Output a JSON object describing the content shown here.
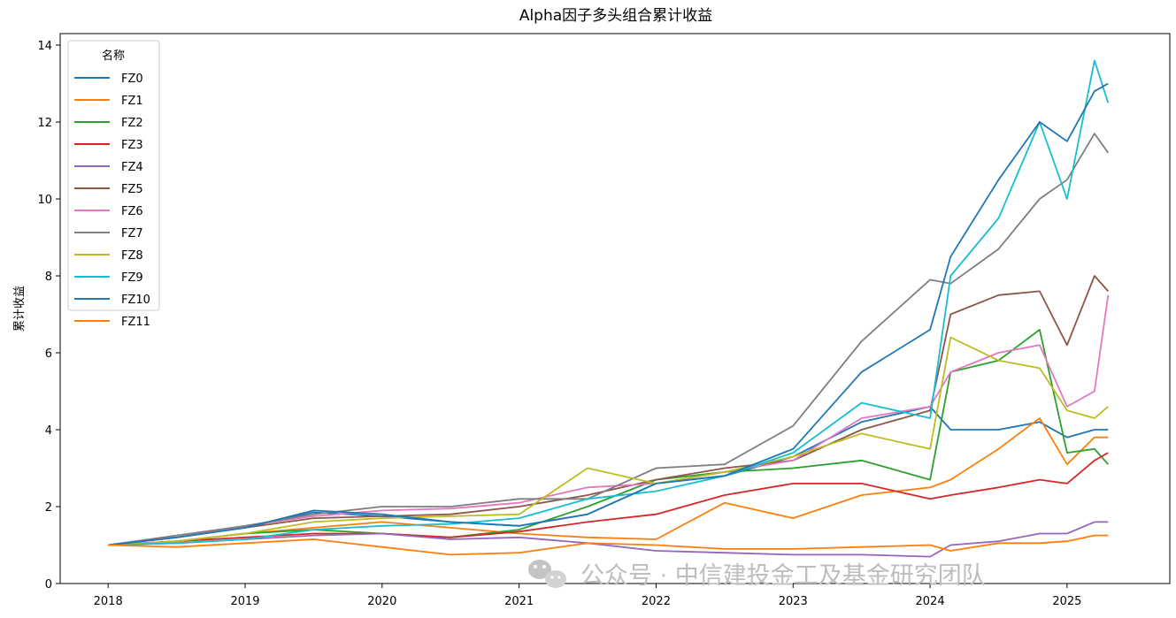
{
  "chart_data": {
    "type": "line",
    "title": "Alpha因子多头组合累计收益",
    "xlabel": "",
    "ylabel": "累计收益",
    "xlim": [
      2017.65,
      2025.75
    ],
    "ylim": [
      0,
      14.3
    ],
    "x_ticks": [
      "2018",
      "2019",
      "2020",
      "2021",
      "2022",
      "2023",
      "2024",
      "2025"
    ],
    "y_ticks": [
      "0",
      "2",
      "4",
      "6",
      "8",
      "10",
      "12",
      "14"
    ],
    "grid": false,
    "legend": {
      "title": "名称",
      "placement": "top-left"
    },
    "x": [
      2018.0,
      2018.5,
      2019.0,
      2019.5,
      2020.0,
      2020.5,
      2021.0,
      2021.5,
      2022.0,
      2022.5,
      2023.0,
      2023.5,
      2024.0,
      2024.15,
      2024.5,
      2024.8,
      2025.0,
      2025.2,
      2025.3
    ],
    "series": [
      {
        "name": "FZ0",
        "color": "#1f77b4",
        "values": [
          1.0,
          1.2,
          1.45,
          1.85,
          1.75,
          1.6,
          1.5,
          1.8,
          2.6,
          2.8,
          3.3,
          4.2,
          4.6,
          4.0,
          4.0,
          4.2,
          3.8,
          4.0,
          4.0
        ]
      },
      {
        "name": "FZ1",
        "color": "#ff7f0e",
        "values": [
          1.0,
          1.1,
          1.3,
          1.45,
          1.6,
          1.45,
          1.3,
          1.2,
          1.15,
          2.1,
          1.7,
          2.3,
          2.5,
          2.7,
          3.5,
          4.3,
          3.1,
          3.8,
          3.8
        ]
      },
      {
        "name": "FZ2",
        "color": "#2ca02c",
        "values": [
          1.0,
          1.1,
          1.3,
          1.4,
          1.3,
          1.2,
          1.4,
          2.0,
          2.7,
          2.9,
          3.0,
          3.2,
          2.7,
          5.5,
          5.8,
          6.6,
          3.4,
          3.5,
          3.1
        ]
      },
      {
        "name": "FZ3",
        "color": "#d62728",
        "values": [
          1.0,
          1.1,
          1.2,
          1.3,
          1.3,
          1.2,
          1.35,
          1.6,
          1.8,
          2.3,
          2.6,
          2.6,
          2.2,
          2.3,
          2.5,
          2.7,
          2.6,
          3.2,
          3.4
        ]
      },
      {
        "name": "FZ4",
        "color": "#9467bd",
        "values": [
          1.0,
          1.05,
          1.15,
          1.25,
          1.3,
          1.15,
          1.2,
          1.05,
          0.85,
          0.8,
          0.75,
          0.75,
          0.7,
          1.0,
          1.1,
          1.3,
          1.3,
          1.6,
          1.6
        ]
      },
      {
        "name": "FZ5",
        "color": "#8c564b",
        "values": [
          1.0,
          1.2,
          1.45,
          1.7,
          1.75,
          1.8,
          2.0,
          2.3,
          2.7,
          3.0,
          3.2,
          4.0,
          4.5,
          7.0,
          7.5,
          7.6,
          6.2,
          8.0,
          7.6
        ]
      },
      {
        "name": "FZ6",
        "color": "#e377c2",
        "values": [
          1.0,
          1.2,
          1.5,
          1.75,
          1.9,
          1.95,
          2.1,
          2.5,
          2.6,
          2.9,
          3.2,
          4.3,
          4.6,
          5.5,
          6.0,
          6.2,
          4.6,
          5.0,
          7.5
        ]
      },
      {
        "name": "FZ7",
        "color": "#7f7f7f",
        "values": [
          1.0,
          1.25,
          1.5,
          1.8,
          2.0,
          2.0,
          2.2,
          2.2,
          3.0,
          3.1,
          4.1,
          6.3,
          7.9,
          7.8,
          8.7,
          10.0,
          10.5,
          11.7,
          11.2
        ]
      },
      {
        "name": "FZ8",
        "color": "#bcbd22",
        "values": [
          1.0,
          1.1,
          1.3,
          1.6,
          1.7,
          1.75,
          1.8,
          3.0,
          2.6,
          2.9,
          3.3,
          3.9,
          3.5,
          6.4,
          5.8,
          5.6,
          4.5,
          4.3,
          4.6
        ]
      },
      {
        "name": "FZ9",
        "color": "#17becf",
        "values": [
          1.0,
          1.05,
          1.15,
          1.4,
          1.5,
          1.55,
          1.7,
          2.2,
          2.4,
          2.8,
          3.4,
          4.7,
          4.3,
          8.0,
          9.5,
          12.0,
          10.0,
          13.6,
          12.5
        ]
      },
      {
        "name": "FZ10",
        "color": "#1f77b4",
        "values": [
          1.0,
          1.2,
          1.45,
          1.9,
          1.8,
          1.6,
          1.5,
          1.8,
          2.6,
          2.8,
          3.5,
          5.5,
          6.6,
          8.5,
          10.5,
          12.0,
          11.5,
          12.8,
          13.0
        ]
      },
      {
        "name": "FZ11",
        "color": "#ff7f0e",
        "values": [
          1.0,
          0.95,
          1.05,
          1.15,
          0.95,
          0.75,
          0.8,
          1.05,
          1.0,
          0.9,
          0.9,
          0.95,
          1.0,
          0.85,
          1.05,
          1.05,
          1.1,
          1.25,
          1.25
        ]
      }
    ]
  },
  "watermark": "公众号 · 中信建投金工及基金研究团队"
}
